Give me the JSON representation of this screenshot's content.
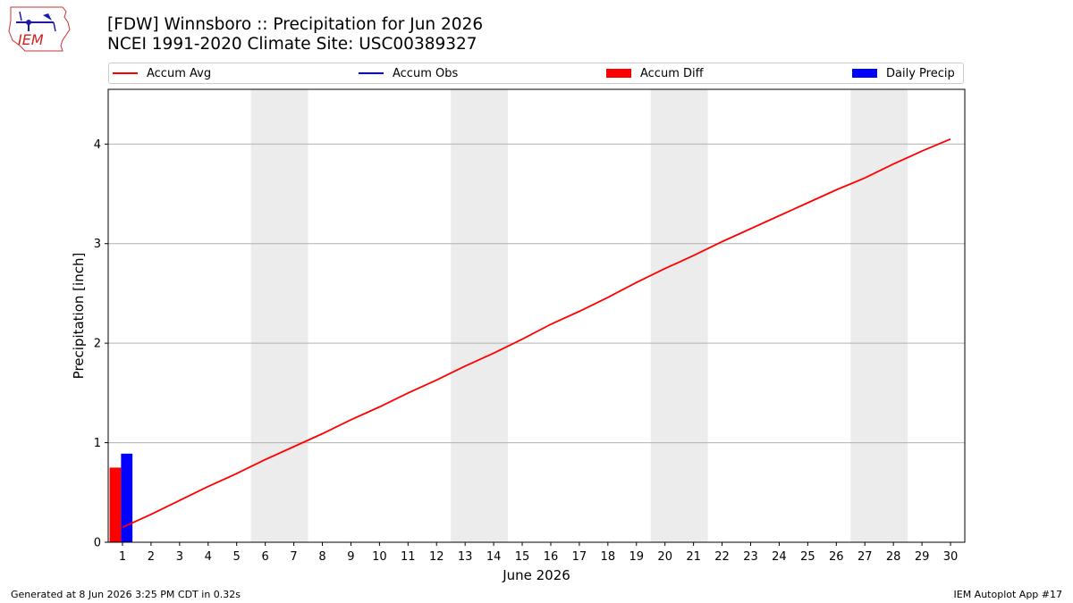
{
  "title_line1": "[FDW] Winnsboro :: Precipitation for Jun 2026",
  "title_line2": "NCEI 1991-2020 Climate Site: USC00389327",
  "logo_text": "IEM",
  "footer_left": "Generated at 8 Jun 2026 3:25 PM CDT in 0.32s",
  "footer_right": "IEM Autoplot App #17",
  "legend": [
    {
      "label": "Accum Avg",
      "kind": "line",
      "color": "#ff0000"
    },
    {
      "label": "Accum Obs",
      "kind": "line",
      "color": "#0000ff"
    },
    {
      "label": "Accum Diff",
      "kind": "bar",
      "color": "#ff0000"
    },
    {
      "label": "Daily Precip",
      "kind": "bar",
      "color": "#0000ff"
    }
  ],
  "chart_data": {
    "type": "line",
    "xlabel": "June 2026",
    "ylabel": "Precipitation [inch]",
    "xlim": [
      0.5,
      30.5
    ],
    "ylim": [
      0,
      4.55
    ],
    "yticks": [
      0,
      1,
      2,
      3,
      4
    ],
    "x": [
      1,
      2,
      3,
      4,
      5,
      6,
      7,
      8,
      9,
      10,
      11,
      12,
      13,
      14,
      15,
      16,
      17,
      18,
      19,
      20,
      21,
      22,
      23,
      24,
      25,
      26,
      27,
      28,
      29,
      30
    ],
    "shaded_weekends": [
      [
        6,
        7
      ],
      [
        13,
        14
      ],
      [
        20,
        21
      ],
      [
        27,
        28
      ]
    ],
    "grid": "y",
    "series": [
      {
        "name": "Accum Avg",
        "type": "line",
        "color": "#ff0000",
        "values": [
          0.15,
          0.28,
          0.42,
          0.56,
          0.69,
          0.83,
          0.96,
          1.09,
          1.23,
          1.36,
          1.5,
          1.63,
          1.77,
          1.9,
          2.04,
          2.19,
          2.32,
          2.46,
          2.61,
          2.75,
          2.88,
          3.02,
          3.15,
          3.28,
          3.41,
          3.54,
          3.66,
          3.8,
          3.93,
          4.05
        ]
      },
      {
        "name": "Accum Diff",
        "type": "bar",
        "color": "#ff0000",
        "points": [
          {
            "x": 1,
            "value": 0.75
          }
        ]
      },
      {
        "name": "Daily Precip",
        "type": "bar",
        "color": "#0000ff",
        "points": [
          {
            "x": 1,
            "value": 0.89
          }
        ]
      }
    ]
  }
}
